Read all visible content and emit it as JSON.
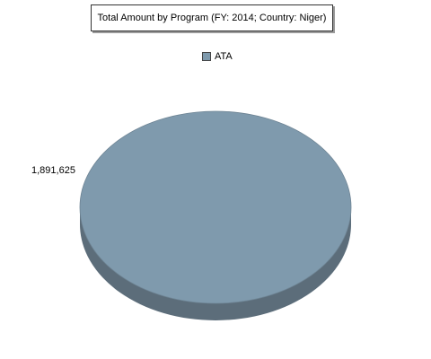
{
  "chart_data": {
    "type": "pie",
    "title": "Total Amount by Program (FY: 2014; Country: Niger)",
    "categories": [
      "ATA"
    ],
    "values": [
      1891625
    ],
    "value_labels": [
      "1,891,625"
    ],
    "legend": {
      "placement": "top-center",
      "items": [
        {
          "label": "ATA",
          "color": "#7f9aad"
        }
      ]
    },
    "style": "3d"
  },
  "colors": {
    "slice_top": "#7f9aad",
    "slice_side": "#5c6d7a",
    "outline": "#6e8494"
  }
}
